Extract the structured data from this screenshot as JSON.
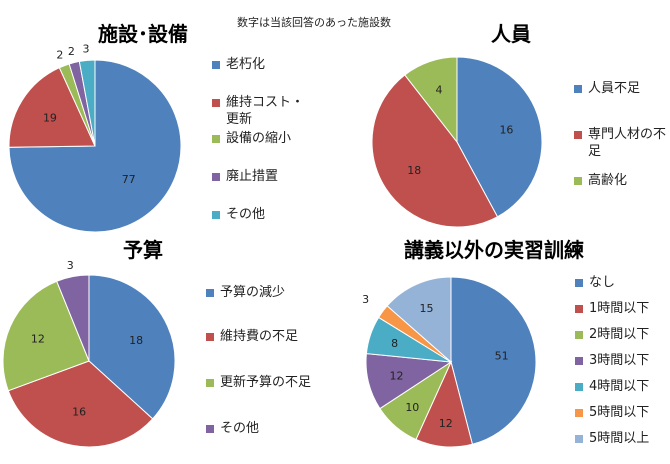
{
  "note": "数字は当該回答のあった施設数",
  "chart_data": [
    {
      "type": "pie",
      "title": "施設･設備",
      "categories": [
        "老朽化",
        "維持コスト・更新",
        "設備の縮小",
        "廃止措置",
        "その他"
      ],
      "values": [
        77,
        19,
        2,
        2,
        3
      ],
      "colors": [
        "#4F81BD",
        "#C0504D",
        "#9BBB59",
        "#8064A2",
        "#4BACC6"
      ],
      "legend_position": "right"
    },
    {
      "type": "pie",
      "title": "人員",
      "categories": [
        "人員不足",
        "専門人材の不足",
        "高齢化"
      ],
      "values": [
        16,
        18,
        4
      ],
      "colors": [
        "#4F81BD",
        "#C0504D",
        "#9BBB59"
      ],
      "legend_position": "right"
    },
    {
      "type": "pie",
      "title": "予算",
      "categories": [
        "予算の減少",
        "維持費の不足",
        "更新予算の不足",
        "その他"
      ],
      "values": [
        18,
        16,
        12,
        3
      ],
      "colors": [
        "#4F81BD",
        "#C0504D",
        "#9BBB59",
        "#8064A2"
      ],
      "legend_position": "right"
    },
    {
      "type": "pie",
      "title": "講義以外の実習訓練",
      "categories": [
        "なし",
        "1時間以下",
        "2時間以下",
        "3時間以下",
        "4時間以下",
        "5時間以下",
        "5時間以上"
      ],
      "values": [
        51,
        12,
        10,
        12,
        8,
        3,
        15
      ],
      "colors": [
        "#4F81BD",
        "#C0504D",
        "#9BBB59",
        "#8064A2",
        "#4BACC6",
        "#F79646",
        "#95B3D7"
      ],
      "legend_position": "right"
    }
  ]
}
